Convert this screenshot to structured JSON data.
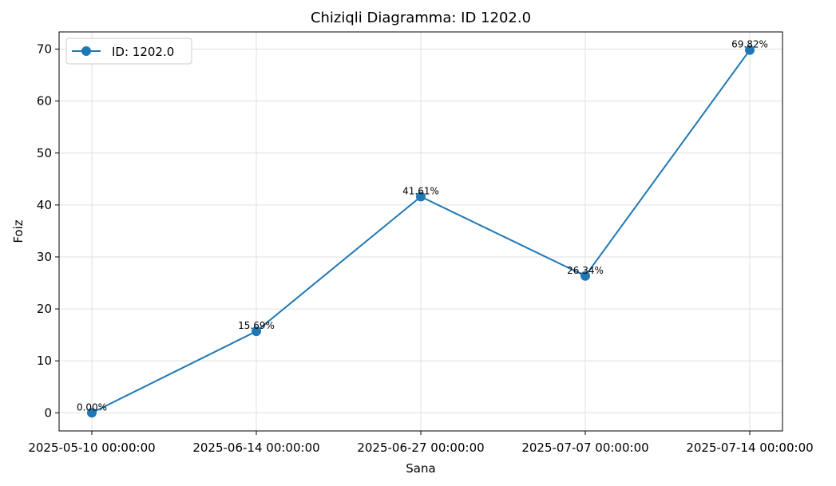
{
  "chart_data": {
    "type": "line",
    "title": "Chiziqli Diagramma: ID 1202.0",
    "xlabel": "Sana",
    "ylabel": "Foiz",
    "categories": [
      "2025-05-10 00:00:00",
      "2025-06-14 00:00:00",
      "2025-06-27 00:00:00",
      "2025-07-07 00:00:00",
      "2025-07-14 00:00:00"
    ],
    "series": [
      {
        "name": "ID: 1202.0",
        "values": [
          0.0,
          15.69,
          41.61,
          26.34,
          69.82
        ],
        "labels": [
          "0.00%",
          "15.69%",
          "41.61%",
          "26.34%",
          "69.82%"
        ],
        "color": "#1f77b4"
      }
    ],
    "ylim": [
      -3.49,
      73.31
    ],
    "yticks": [
      0,
      10,
      20,
      30,
      40,
      50,
      60,
      70
    ],
    "grid": true,
    "legend_position": "top-left"
  }
}
